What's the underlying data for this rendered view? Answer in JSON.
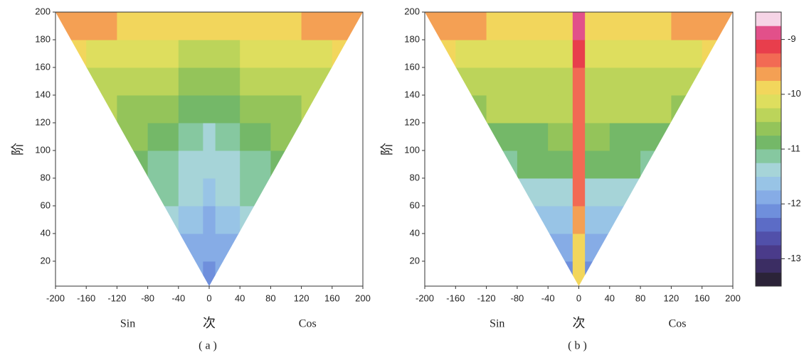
{
  "chart_data": [
    {
      "type": "triangle-heatmap",
      "y_label": "阶",
      "x_label": "次",
      "left_label": "Sin",
      "right_label": "Cos",
      "caption": "(a)",
      "xlim": [
        -200,
        200
      ],
      "xticks": [
        -200,
        -160,
        -120,
        -80,
        -40,
        0,
        40,
        80,
        120,
        160,
        200
      ],
      "ylim": [
        2,
        200
      ],
      "yticks": [
        20,
        40,
        60,
        80,
        100,
        120,
        140,
        160,
        180,
        200
      ],
      "xbins": [
        -200,
        -160,
        -120,
        -80,
        -40,
        -8,
        8,
        40,
        80,
        120,
        160,
        200
      ],
      "ybins": [
        2,
        20,
        40,
        60,
        80,
        100,
        120,
        140,
        160,
        180,
        200
      ],
      "values": [
        [
          null,
          null,
          null,
          null,
          -11.9,
          -12.1,
          -11.9,
          null,
          null,
          null,
          null
        ],
        [
          null,
          null,
          null,
          null,
          -11.8,
          -12.0,
          -11.8,
          null,
          null,
          null,
          null
        ],
        [
          null,
          null,
          null,
          -11.4,
          -11.6,
          -11.9,
          -11.6,
          -11.4,
          null,
          null,
          null
        ],
        [
          null,
          null,
          null,
          -11.2,
          -11.4,
          -11.7,
          -11.4,
          -11.2,
          null,
          null,
          null
        ],
        [
          null,
          null,
          -10.9,
          -11.1,
          -11.3,
          -11.5,
          -11.3,
          -11.1,
          -10.9,
          null,
          null
        ],
        [
          null,
          null,
          -10.7,
          -10.9,
          -11.1,
          -11.3,
          -11.1,
          -10.9,
          -10.7,
          null,
          null
        ],
        [
          null,
          -10.5,
          -10.6,
          -10.7,
          -10.9,
          -11.0,
          -10.9,
          -10.7,
          -10.6,
          -10.5,
          null
        ],
        [
          null,
          -10.3,
          -10.4,
          -10.5,
          -10.6,
          -10.7,
          -10.6,
          -10.5,
          -10.4,
          -10.3,
          null
        ],
        [
          -10.0,
          -10.1,
          -10.2,
          -10.2,
          -10.3,
          -10.4,
          -10.3,
          -10.2,
          -10.2,
          -10.1,
          -10.0
        ],
        [
          -9.6,
          -9.7,
          -9.8,
          -9.8,
          -9.9,
          -10.0,
          -9.9,
          -9.8,
          -9.8,
          -9.7,
          -9.6
        ]
      ]
    },
    {
      "type": "triangle-heatmap",
      "y_label": "阶",
      "x_label": "次",
      "left_label": "Sin",
      "right_label": "Cos",
      "caption": "(b)",
      "xlim": [
        -200,
        200
      ],
      "xticks": [
        -200,
        -160,
        -120,
        -80,
        -40,
        0,
        40,
        80,
        120,
        160,
        200
      ],
      "ylim": [
        2,
        200
      ],
      "yticks": [
        20,
        40,
        60,
        80,
        100,
        120,
        140,
        160,
        180,
        200
      ],
      "xbins": [
        -200,
        -160,
        -120,
        -80,
        -40,
        -8,
        8,
        40,
        80,
        120,
        160,
        200
      ],
      "ybins": [
        2,
        20,
        40,
        60,
        80,
        100,
        120,
        140,
        160,
        180,
        200
      ],
      "values": [
        [
          null,
          null,
          null,
          null,
          -12.2,
          -10.0,
          -12.2,
          null,
          null,
          null,
          null
        ],
        [
          null,
          null,
          null,
          null,
          -12.0,
          -9.8,
          -12.0,
          null,
          null,
          null,
          null
        ],
        [
          null,
          null,
          null,
          -11.6,
          -11.6,
          -9.6,
          -11.6,
          -11.6,
          null,
          null,
          null
        ],
        [
          null,
          null,
          null,
          -11.4,
          -11.3,
          -9.5,
          -11.3,
          -11.4,
          null,
          null,
          null
        ],
        [
          null,
          null,
          -11.1,
          -11.0,
          -10.9,
          -9.4,
          -10.9,
          -11.0,
          -11.1,
          null,
          null
        ],
        [
          null,
          null,
          -10.9,
          -10.8,
          -10.7,
          -9.4,
          -10.7,
          -10.8,
          -10.9,
          null,
          null
        ],
        [
          null,
          -10.6,
          -10.5,
          -10.5,
          -10.4,
          -9.3,
          -10.4,
          -10.5,
          -10.5,
          -10.6,
          null
        ],
        [
          null,
          -10.4,
          -10.3,
          -10.3,
          -10.3,
          -9.3,
          -10.3,
          -10.3,
          -10.3,
          -10.4,
          null
        ],
        [
          -10.0,
          -10.1,
          -10.1,
          -10.1,
          -10.1,
          -9.2,
          -10.1,
          -10.1,
          -10.1,
          -10.1,
          -10.0
        ],
        [
          -9.6,
          -9.7,
          -9.8,
          -9.8,
          -9.8,
          -9.0,
          -9.8,
          -9.8,
          -9.8,
          -9.7,
          -9.6
        ]
      ],
      "zlim": [
        -13.5,
        -8.5
      ],
      "zticks": [
        -13,
        -12,
        -11,
        -10,
        -9
      ],
      "colors": [
        "#2b2338",
        "#3b2d63",
        "#4a3b8a",
        "#5150aa",
        "#5c6cc6",
        "#6f8fdc",
        "#86ace6",
        "#98c4e6",
        "#a6d4d8",
        "#86c8a0",
        "#74b868",
        "#94c45a",
        "#bcd45a",
        "#dede5e",
        "#f2d65c",
        "#f4a054",
        "#f26a54",
        "#e83e4c",
        "#e2508a",
        "#f6d4e6"
      ]
    }
  ]
}
